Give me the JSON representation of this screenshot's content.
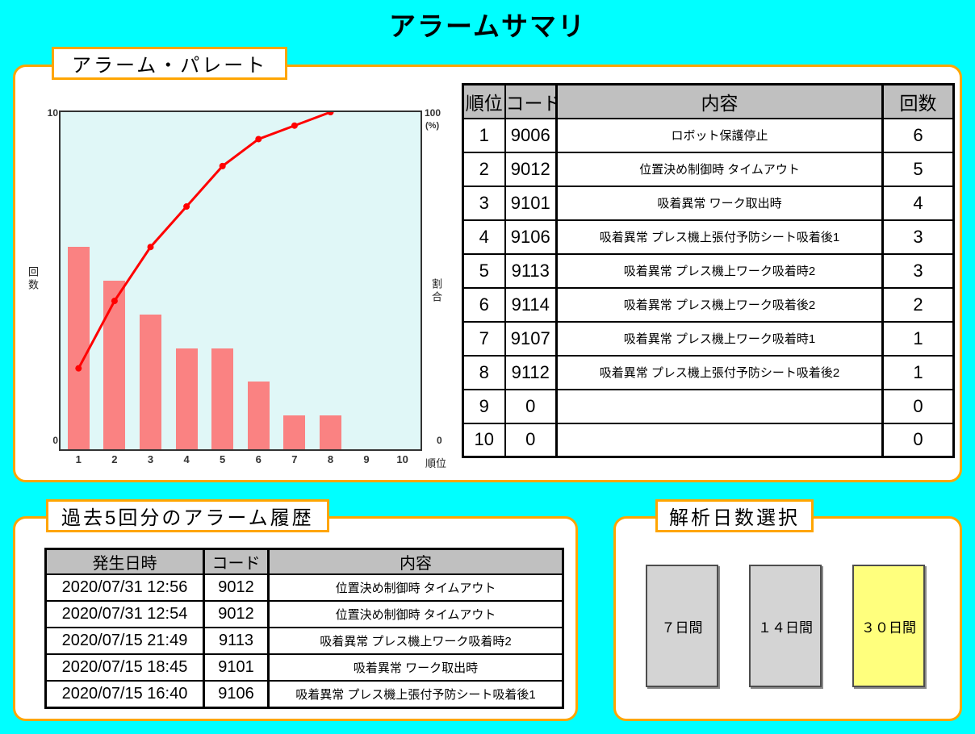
{
  "page": {
    "title": "アラームサマリ",
    "background": "#00FFFF",
    "accent_border": "#FFA500"
  },
  "pareto_panel": {
    "title": "アラーム・パレート"
  },
  "chart_data": {
    "type": "bar",
    "subtype": "pareto",
    "categories": [
      "1",
      "2",
      "3",
      "4",
      "5",
      "6",
      "7",
      "8",
      "9",
      "10"
    ],
    "series": [
      {
        "name": "回数",
        "type": "bar",
        "values": [
          6,
          5,
          4,
          3,
          3,
          2,
          1,
          1,
          0,
          0
        ]
      },
      {
        "name": "割合",
        "type": "line",
        "axis": "right",
        "values": [
          24,
          44,
          60,
          72,
          84,
          92,
          96,
          100,
          null,
          null
        ]
      }
    ],
    "left_axis": {
      "label": "回数",
      "min": 0,
      "max": 10,
      "min_label": "0",
      "max_label": "10"
    },
    "right_axis": {
      "label": "割合",
      "min": 0,
      "max": 100,
      "min_label": "0",
      "max_label": "100",
      "unit": "(%)"
    },
    "xlabel": "順位",
    "bar_color": "#FA8282",
    "line_color": "#FF0000",
    "plot_background": "#E0F7F7",
    "legend": "none",
    "grid": false
  },
  "rank_table": {
    "header_bg": "#C0C0C0",
    "headers": [
      "順位",
      "コード",
      "内容",
      "回数"
    ],
    "rows": [
      [
        "1",
        "9006",
        "ロボット保護停止",
        "6"
      ],
      [
        "2",
        "9012",
        "位置決め制御時 タイムアウト",
        "5"
      ],
      [
        "3",
        "9101",
        "吸着異常 ワーク取出時",
        "4"
      ],
      [
        "4",
        "9106",
        "吸着異常 プレス機上張付予防シート吸着後1",
        "3"
      ],
      [
        "5",
        "9113",
        "吸着異常 プレス機上ワーク吸着時2",
        "3"
      ],
      [
        "6",
        "9114",
        "吸着異常 プレス機上ワーク吸着後2",
        "2"
      ],
      [
        "7",
        "9107",
        "吸着異常 プレス機上ワーク吸着時1",
        "1"
      ],
      [
        "8",
        "9112",
        "吸着異常 プレス機上張付予防シート吸着後2",
        "1"
      ],
      [
        "9",
        "0",
        "",
        "0"
      ],
      [
        "10",
        "0",
        "",
        "0"
      ]
    ]
  },
  "history_panel": {
    "title": "過去5回分のアラーム履歴",
    "table": {
      "header_bg": "#C0C0C0",
      "headers": [
        "発生日時",
        "コード",
        "内容"
      ],
      "rows": [
        [
          "2020/07/31 12:56",
          "9012",
          "位置決め制御時 タイムアウト"
        ],
        [
          "2020/07/31 12:54",
          "9012",
          "位置決め制御時 タイムアウト"
        ],
        [
          "2020/07/15 21:49",
          "9113",
          "吸着異常 プレス機上ワーク吸着時2"
        ],
        [
          "2020/07/15 18:45",
          "9101",
          "吸着異常 ワーク取出時"
        ],
        [
          "2020/07/15 16:40",
          "9106",
          "吸着異常 プレス機上張付予防シート吸着後1"
        ]
      ]
    }
  },
  "days_panel": {
    "title": "解析日数選択",
    "buttons": [
      {
        "days": 7,
        "label": "７日間",
        "selected": false,
        "color": "#D4D4D4"
      },
      {
        "days": 14,
        "label": "１４日間",
        "selected": false,
        "color": "#D4D4D4"
      },
      {
        "days": 30,
        "label": "３０日間",
        "selected": true,
        "color": "#FFFF7D"
      }
    ]
  }
}
